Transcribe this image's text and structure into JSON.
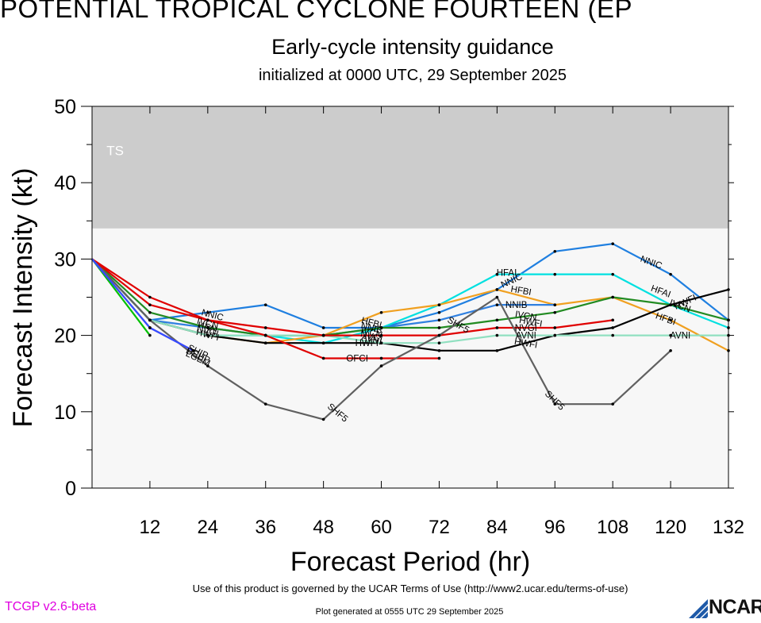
{
  "title": "POTENTIAL TROPICAL CYCLONE FOURTEEN (EP",
  "subtitle": "Early-cycle intensity guidance",
  "init_line": "initialized at 0000 UTC, 29 September 2025",
  "footer": {
    "terms": "Use of this product is governed by the UCAR Terms of Use (http://www2.ucar.edu/terms-of-use)",
    "version": "TCGP v2.6-beta",
    "generated": "Plot generated at 0555 UTC   29 September 2025",
    "logo_text": "NCAR"
  },
  "chart_data": {
    "type": "line",
    "xlabel": "Forecast Period (hr)",
    "ylabel": "Forecast Intensity (kt)",
    "xlim": [
      0,
      132
    ],
    "ylim": [
      0,
      50
    ],
    "x_ticks": [
      12,
      24,
      36,
      48,
      60,
      72,
      84,
      96,
      108,
      120,
      132
    ],
    "y_ticks": [
      0,
      10,
      20,
      30,
      40,
      50
    ],
    "bands": [
      {
        "label": "TS",
        "from": 34,
        "to": 50,
        "color": "#cccccc"
      },
      {
        "label": "",
        "from": 0,
        "to": 34,
        "color": "#f7f7f7"
      }
    ],
    "series": [
      {
        "name": "NNIC",
        "color": "#1f7fe0",
        "x": [
          0,
          12,
          24,
          36,
          48,
          60,
          72,
          84,
          96,
          108,
          120,
          132
        ],
        "y": [
          30,
          22,
          23,
          24,
          21,
          21,
          23,
          26,
          31,
          32,
          28,
          22
        ]
      },
      {
        "name": "HFAI",
        "color": "#00e0e0",
        "x": [
          0,
          12,
          24,
          36,
          48,
          60,
          72,
          84,
          96,
          108,
          120,
          132
        ],
        "y": [
          30,
          22,
          20,
          20,
          19,
          21,
          24,
          28,
          28,
          28,
          24,
          21
        ]
      },
      {
        "name": "HFBI",
        "color": "#f0a020",
        "x": [
          0,
          12,
          24,
          36,
          48,
          60,
          72,
          84,
          96,
          108,
          120,
          132
        ],
        "y": [
          30,
          22,
          20,
          19,
          20,
          23,
          24,
          26,
          24,
          25,
          22,
          18
        ]
      },
      {
        "name": "NNIB",
        "color": "#3080e0",
        "x": [
          0,
          12,
          24,
          36,
          48,
          60,
          72,
          84,
          96
        ],
        "y": [
          30,
          22,
          21,
          20,
          20,
          21,
          22,
          24,
          24
        ]
      },
      {
        "name": "IVCN",
        "color": "#228b22",
        "x": [
          0,
          12,
          24,
          36,
          48,
          60,
          72,
          84,
          96,
          108,
          120,
          132
        ],
        "y": [
          30,
          23,
          21,
          20,
          20,
          21,
          21,
          22,
          23,
          25,
          24,
          22
        ]
      },
      {
        "name": "HWFI",
        "color": "#000000",
        "x": [
          0,
          12,
          24,
          36,
          48,
          60,
          72,
          84,
          96,
          108,
          120,
          132
        ],
        "y": [
          30,
          22,
          20,
          19,
          19,
          19,
          18,
          18,
          20,
          21,
          24,
          26
        ]
      },
      {
        "name": "AVNI",
        "color": "#90e0c0",
        "x": [
          0,
          12,
          24,
          36,
          48,
          60,
          72,
          84,
          96,
          108,
          120,
          132
        ],
        "y": [
          30,
          22,
          20,
          20,
          20,
          19,
          19,
          20,
          20,
          20,
          20,
          20
        ]
      },
      {
        "name": "NVGI",
        "color": "#e00000",
        "x": [
          0,
          12,
          24,
          36,
          48,
          60,
          72,
          84,
          96,
          108
        ],
        "y": [
          30,
          24,
          22,
          21,
          20,
          20,
          20,
          21,
          21,
          22
        ]
      },
      {
        "name": "OFCI",
        "color": "#e00000",
        "x": [
          0,
          12,
          24,
          36,
          48,
          60,
          72
        ],
        "y": [
          30,
          25,
          22,
          20,
          17,
          17,
          17
        ]
      },
      {
        "name": "SHF5",
        "color": "#606060",
        "x": [
          0,
          12,
          24,
          36,
          48,
          60,
          72,
          84,
          96,
          108,
          120
        ],
        "y": [
          30,
          22,
          16,
          11,
          9,
          16,
          20,
          25,
          11,
          11,
          18
        ]
      },
      {
        "name": "SHIP",
        "color": "#00c000",
        "x": [
          0,
          12
        ],
        "y": [
          30,
          20
        ]
      },
      {
        "name": "DSHP",
        "color": "#e000e0",
        "x": [
          0,
          12,
          21
        ],
        "y": [
          30,
          21,
          18
        ]
      },
      {
        "name": "LGEM",
        "color": "#3050ff",
        "x": [
          0,
          12,
          21
        ],
        "y": [
          30,
          21,
          18
        ]
      }
    ],
    "labels": [
      {
        "text": "NNIC",
        "x": 25,
        "y": 22.7,
        "rot": 15
      },
      {
        "text": "IVCN",
        "x": 24,
        "y": 21.6,
        "rot": 15
      },
      {
        "text": "HFAI",
        "x": 24,
        "y": 21.1,
        "rot": 15
      },
      {
        "text": "NVGI",
        "x": 24,
        "y": 20.6,
        "rot": 15
      },
      {
        "text": "HWFI",
        "x": 24,
        "y": 20.1,
        "rot": 15
      },
      {
        "text": "HFBI",
        "x": 58,
        "y": 21.7,
        "rot": 15
      },
      {
        "text": "NNIB",
        "x": 58,
        "y": 21.0,
        "rot": 15
      },
      {
        "text": "IVCN",
        "x": 58,
        "y": 20.4,
        "rot": 15
      },
      {
        "text": "NVGI",
        "x": 58,
        "y": 19.9,
        "rot": 15
      },
      {
        "text": "AVNI",
        "x": 58,
        "y": 19.5,
        "rot": 15
      },
      {
        "text": "HWFI",
        "x": 57,
        "y": 19.0,
        "rot": 0
      },
      {
        "text": "OFCI",
        "x": 55,
        "y": 17.0,
        "rot": 0
      },
      {
        "text": "SHF5",
        "x": 51,
        "y": 9.9,
        "rot": 40
      },
      {
        "text": "SHF5",
        "x": 76,
        "y": 21.4,
        "rot": 30
      },
      {
        "text": "HFAI",
        "x": 86,
        "y": 28.2,
        "rot": 0
      },
      {
        "text": "NNIC",
        "x": 87,
        "y": 27.2,
        "rot": -25
      },
      {
        "text": "HFBI",
        "x": 89,
        "y": 25.9,
        "rot": 10
      },
      {
        "text": "NNIB",
        "x": 88,
        "y": 24.0,
        "rot": 0
      },
      {
        "text": "IVCN",
        "x": 90,
        "y": 22.6,
        "rot": 10
      },
      {
        "text": "HWFI",
        "x": 91,
        "y": 21.8,
        "rot": 10
      },
      {
        "text": "NVGI",
        "x": 90,
        "y": 21.0,
        "rot": 0
      },
      {
        "text": "AVNI",
        "x": 90,
        "y": 20.0,
        "rot": 0
      },
      {
        "text": "HWFI",
        "x": 90,
        "y": 19.0,
        "rot": 10
      },
      {
        "text": "SHF5",
        "x": 96,
        "y": 11.5,
        "rot": 45
      },
      {
        "text": "NNIC",
        "x": 116,
        "y": 29.6,
        "rot": 20
      },
      {
        "text": "HFAI",
        "x": 118,
        "y": 25.8,
        "rot": 20
      },
      {
        "text": "HWFI",
        "x": 123,
        "y": 24.4,
        "rot": -25
      },
      {
        "text": "IVCN",
        "x": 122,
        "y": 23.9,
        "rot": 20
      },
      {
        "text": "HFBI",
        "x": 119,
        "y": 22.2,
        "rot": 20
      },
      {
        "text": "AVNI",
        "x": 122,
        "y": 20.0,
        "rot": 0
      },
      {
        "text": "SHIP",
        "x": 22,
        "y": 17.9,
        "rot": 25
      },
      {
        "text": "DSHP",
        "x": 22,
        "y": 17.4,
        "rot": 25
      },
      {
        "text": "LGEM",
        "x": 22,
        "y": 17.0,
        "rot": 25
      }
    ]
  }
}
